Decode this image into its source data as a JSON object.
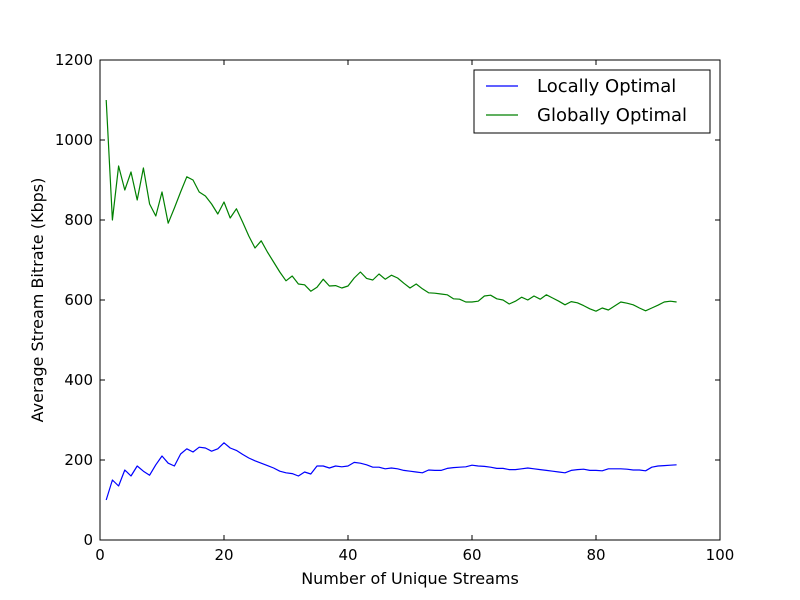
{
  "chart_data": {
    "type": "line",
    "title": "",
    "xlabel": "Number of Unique Streams",
    "ylabel": "Average Stream Bitrate (Kbps)",
    "xlim": [
      0,
      100
    ],
    "ylim": [
      0,
      1200
    ],
    "xticks": [
      0,
      20,
      40,
      60,
      80,
      100
    ],
    "yticks": [
      0,
      200,
      400,
      600,
      800,
      1000,
      1200
    ],
    "grid": false,
    "legend": "top-right",
    "x": [
      1,
      2,
      3,
      4,
      5,
      6,
      7,
      8,
      9,
      10,
      11,
      12,
      13,
      14,
      15,
      16,
      17,
      18,
      19,
      20,
      21,
      22,
      23,
      24,
      25,
      26,
      27,
      28,
      29,
      30,
      31,
      32,
      33,
      34,
      35,
      36,
      37,
      38,
      39,
      40,
      41,
      42,
      43,
      44,
      45,
      46,
      47,
      48,
      49,
      50,
      51,
      52,
      53,
      54,
      55,
      56,
      57,
      58,
      59,
      60,
      61,
      62,
      63,
      64,
      65,
      66,
      67,
      68,
      69,
      70,
      71,
      72,
      73,
      74,
      75,
      76,
      77,
      78,
      79,
      80,
      81,
      82,
      83,
      84,
      85,
      86,
      87,
      88,
      89,
      90,
      91,
      92,
      93
    ],
    "series": [
      {
        "name": "Locally Optimal",
        "color": "#0000ff",
        "values": [
          100,
          150,
          135,
          175,
          160,
          185,
          172,
          162,
          188,
          210,
          192,
          185,
          215,
          228,
          220,
          232,
          230,
          222,
          228,
          243,
          230,
          224,
          214,
          205,
          198,
          192,
          186,
          180,
          172,
          168,
          166,
          160,
          170,
          165,
          185,
          185,
          180,
          185,
          183,
          185,
          194,
          192,
          188,
          182,
          182,
          178,
          180,
          178,
          174,
          172,
          170,
          168,
          175,
          174,
          174,
          179,
          181,
          182,
          183,
          187,
          185,
          184,
          182,
          179,
          179,
          176,
          176,
          178,
          180,
          178,
          176,
          174,
          172,
          170,
          168,
          174,
          176,
          177,
          174,
          174,
          173,
          178,
          178,
          178,
          177,
          175,
          175,
          173,
          182,
          185,
          186,
          187,
          188
        ]
      },
      {
        "name": "Globally Optimal",
        "color": "#008000",
        "values": [
          1100,
          800,
          935,
          875,
          920,
          850,
          930,
          840,
          810,
          870,
          792,
          830,
          870,
          908,
          900,
          870,
          860,
          840,
          815,
          845,
          805,
          828,
          795,
          760,
          730,
          748,
          720,
          695,
          670,
          648,
          660,
          640,
          638,
          622,
          632,
          652,
          635,
          636,
          630,
          635,
          655,
          670,
          654,
          650,
          665,
          652,
          662,
          655,
          642,
          630,
          640,
          628,
          618,
          617,
          615,
          613,
          603,
          602,
          595,
          595,
          597,
          610,
          612,
          603,
          600,
          590,
          597,
          607,
          600,
          610,
          602,
          613,
          605,
          597,
          588,
          596,
          593,
          586,
          578,
          572,
          580,
          575,
          585,
          595,
          592,
          588,
          580,
          573,
          580,
          587,
          595,
          597,
          595
        ]
      }
    ]
  }
}
